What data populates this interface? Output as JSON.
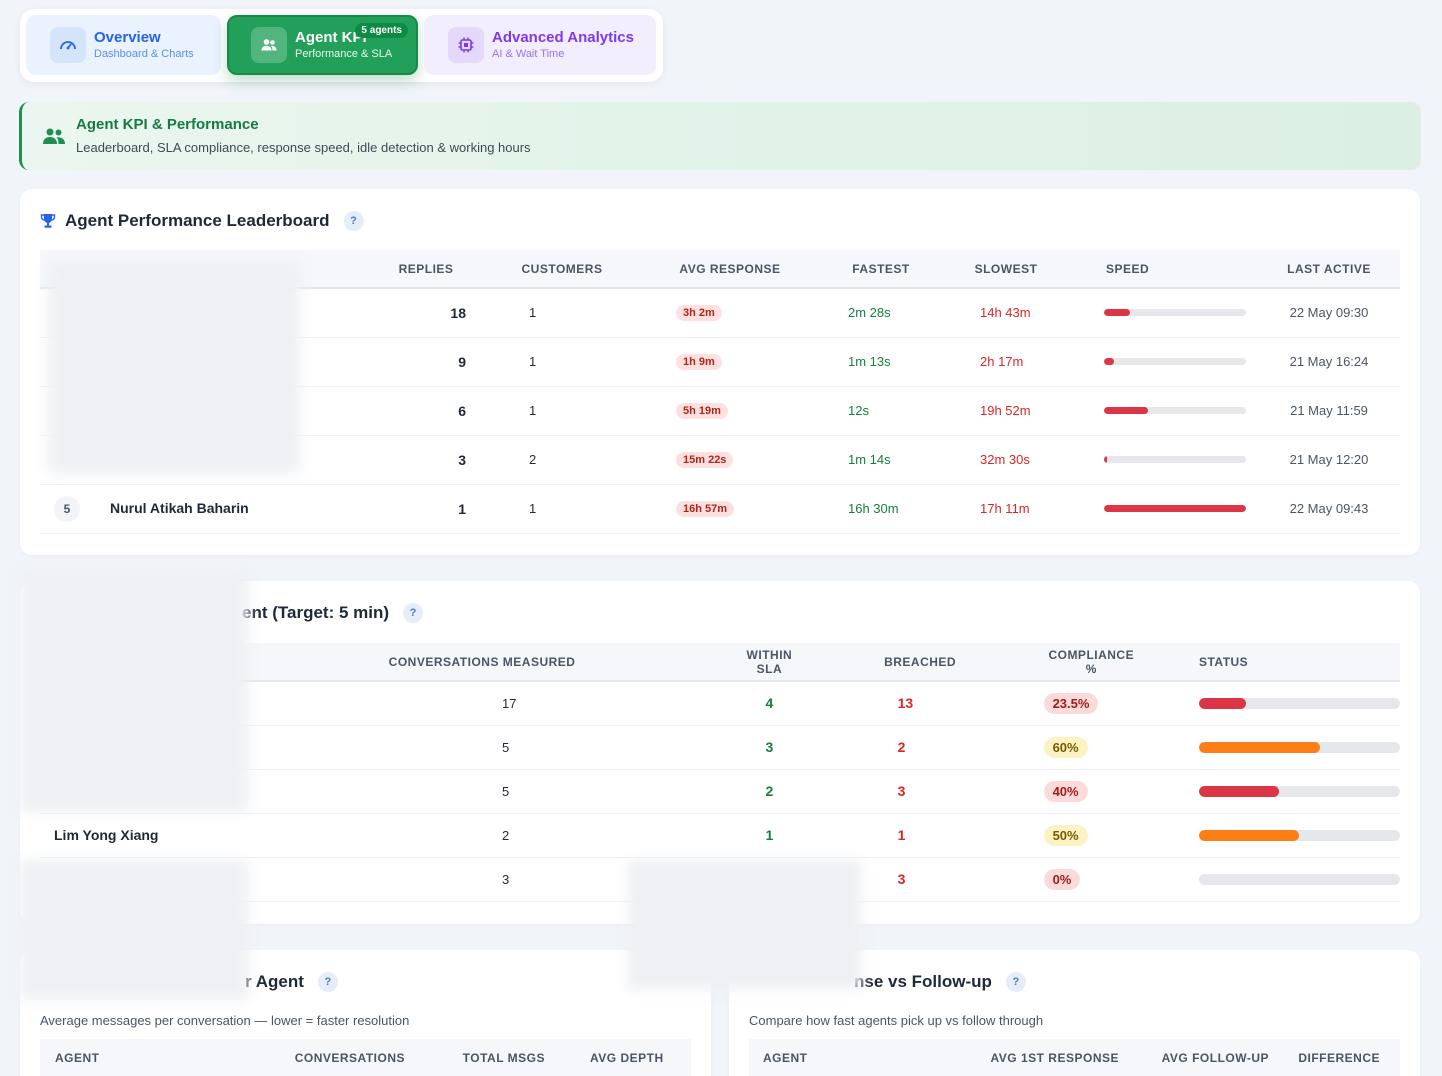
{
  "tabs": [
    {
      "title": "Overview",
      "subtitle": "Dashboard & Charts"
    },
    {
      "title": "Agent KPI",
      "subtitle": "Performance & SLA",
      "badge": "5 agents"
    },
    {
      "title": "Advanced Analytics",
      "subtitle": "AI & Wait Time"
    }
  ],
  "banner": {
    "title": "Agent KPI & Performance",
    "subtitle": "Leaderboard, SLA compliance, response speed, idle detection & working hours"
  },
  "leaderboard": {
    "title": "Agent Performance Leaderboard",
    "help": "?",
    "columns": [
      "REPLIES",
      "CUSTOMERS",
      "AVG RESPONSE",
      "FASTEST",
      "SLOWEST",
      "SPEED",
      "LAST ACTIVE"
    ],
    "rows": [
      {
        "rank": "",
        "name": "",
        "replies": "18",
        "customers": "1",
        "avg": "3h 2m",
        "fastest": "2m 28s",
        "slowest": "14h 43m",
        "speed": 0.18,
        "last": "22 May 09:30"
      },
      {
        "rank": "",
        "name": "",
        "replies": "9",
        "customers": "1",
        "avg": "1h 9m",
        "fastest": "1m 13s",
        "slowest": "2h 17m",
        "speed": 0.07,
        "last": "21 May 16:24"
      },
      {
        "rank": "",
        "name": "",
        "replies": "6",
        "customers": "1",
        "avg": "5h 19m",
        "fastest": "12s",
        "slowest": "19h 52m",
        "speed": 0.31,
        "last": "21 May 11:59"
      },
      {
        "rank": "",
        "name": "",
        "replies": "3",
        "customers": "2",
        "avg": "15m 22s",
        "fastest": "1m 14s",
        "slowest": "32m 30s",
        "speed": 0.015,
        "last": "21 May 12:20"
      },
      {
        "rank": "5",
        "name": "Nurul Atikah Baharin",
        "replies": "1",
        "customers": "1",
        "avg": "16h 57m",
        "fastest": "16h 30m",
        "slowest": "17h 11m",
        "speed": 1.0,
        "last": "22 May 09:43"
      }
    ]
  },
  "sla": {
    "title": "ent (Target: 5 min)",
    "help": "?",
    "columns": [
      "CONVERSATIONS MEASURED",
      "WITHIN SLA",
      "BREACHED",
      "COMPLIANCE %",
      "STATUS"
    ],
    "rows": [
      {
        "name": "",
        "measured": "17",
        "within": "4",
        "breached": "13",
        "compliance": "23.5%",
        "value": 0.235,
        "level": "red"
      },
      {
        "name": "",
        "measured": "5",
        "within": "3",
        "breached": "2",
        "compliance": "60%",
        "value": 0.6,
        "level": "yellow"
      },
      {
        "name": "",
        "measured": "5",
        "within": "2",
        "breached": "3",
        "compliance": "40%",
        "value": 0.4,
        "level": "red"
      },
      {
        "name": "Lim Yong Xiang",
        "measured": "2",
        "within": "1",
        "breached": "1",
        "compliance": "50%",
        "value": 0.5,
        "level": "yellow"
      },
      {
        "name": "",
        "measured": "3",
        "within": "",
        "breached": "3",
        "compliance": "0%",
        "value": 0.0,
        "level": "red"
      }
    ]
  },
  "depth": {
    "title": "r Agent",
    "help": "?",
    "subtitle": "Average messages per conversation — lower = faster resolution",
    "columns": [
      "AGENT",
      "CONVERSATIONS",
      "TOTAL MSGS",
      "AVG DEPTH"
    ]
  },
  "followup": {
    "title": "nse vs Follow-up",
    "help": "?",
    "subtitle": "Compare how fast agents pick up vs follow through",
    "columns": [
      "AGENT",
      "AVG 1ST RESPONSE",
      "AVG FOLLOW-UP",
      "DIFFERENCE"
    ]
  },
  "colors": {
    "red": "#dc3545",
    "orange": "#fd7e14",
    "green": "#22a059",
    "blue": "#2563eb",
    "purple": "#7c3aed"
  }
}
